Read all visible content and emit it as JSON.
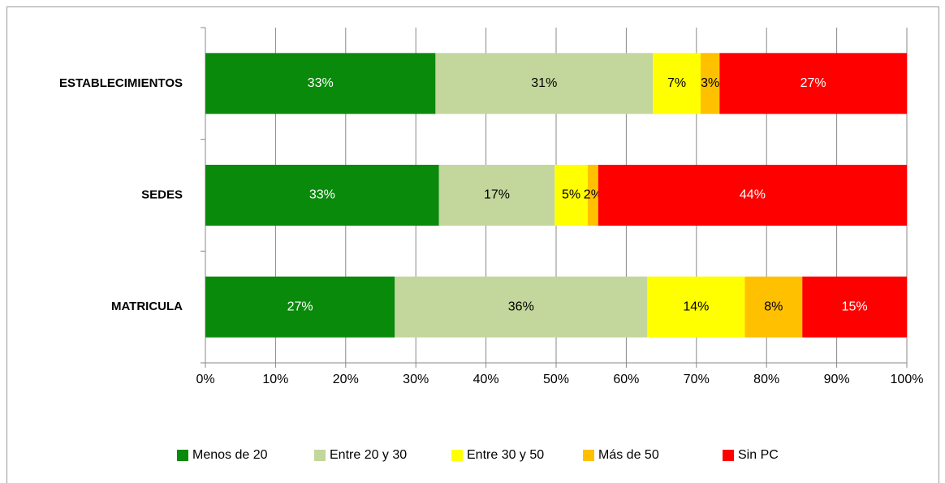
{
  "chart_data": {
    "type": "bar",
    "orientation": "horizontal",
    "stacked": true,
    "categories": [
      "ESTABLECIMIENTOS",
      "SEDES",
      "MATRICULA"
    ],
    "series": [
      {
        "name": "Menos de 20",
        "color": "#0a8a0a",
        "values": [
          32.8,
          33.3,
          27
        ],
        "value_labels": [
          "33%",
          "33%",
          "27%"
        ]
      },
      {
        "name": "Entre 20 y 30",
        "color": "#c3d69b",
        "values": [
          31,
          16.5,
          36
        ],
        "value_labels": [
          "31%",
          "17%",
          "36%"
        ]
      },
      {
        "name": "Entre 30 y 50",
        "color": "#ffff00",
        "values": [
          6.8,
          4.7,
          13.9
        ],
        "value_labels": [
          "7%",
          "5%",
          "14%"
        ]
      },
      {
        "name": "Más de 50",
        "color": "#ffc000",
        "values": [
          2.7,
          1.5,
          8.2
        ],
        "value_labels": [
          "3%",
          "2%",
          "8%"
        ]
      },
      {
        "name": "Sin PC",
        "color": "#ff0000",
        "values": [
          26.7,
          44,
          14.9
        ],
        "value_labels": [
          "27%",
          "44%",
          "15%"
        ]
      }
    ],
    "xlim": [
      0,
      100
    ],
    "xticks": [
      {
        "value": 0,
        "label": "0%"
      },
      {
        "value": 10,
        "label": "10%"
      },
      {
        "value": 20,
        "label": "20%"
      },
      {
        "value": 30,
        "label": "30%"
      },
      {
        "value": 40,
        "label": "40%"
      },
      {
        "value": 50,
        "label": "50%"
      },
      {
        "value": 60,
        "label": "60%"
      },
      {
        "value": 70,
        "label": "70%"
      },
      {
        "value": 80,
        "label": "80%"
      },
      {
        "value": 90,
        "label": "90%"
      },
      {
        "value": 100,
        "label": "100%"
      }
    ],
    "grid": true,
    "legend": "bottom"
  }
}
